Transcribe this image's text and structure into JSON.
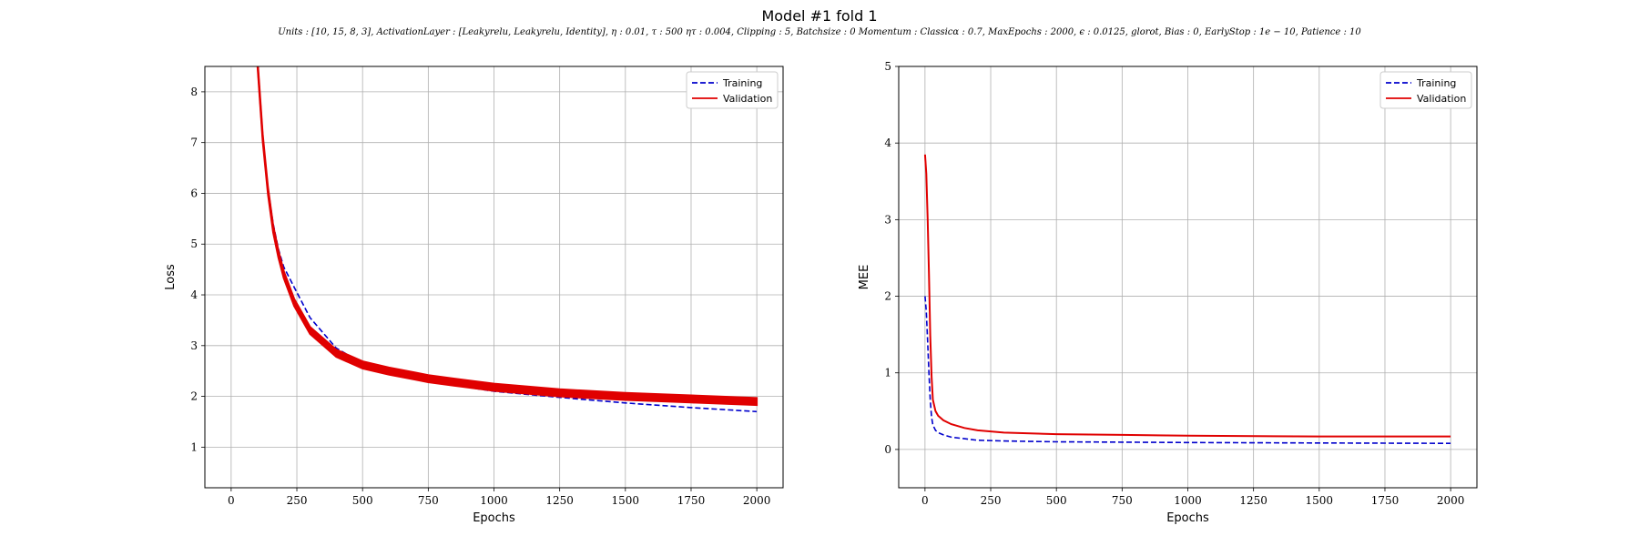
{
  "title": "Model #1 fold 1",
  "subtitle": "Units : [10, 15, 8, 3], ActivationLayer : [Leakyrelu, Leakyrelu, Identity], η : 0.01, τ : 500 ητ : 0.004, Clipping : 5, Batchsize : 0 Momentum : Classicα : 0.7, MaxEpochs : 2000, ϵ : 0.0125, glorot, Bias : 0, EarlyStop : 1e − 10, Patience : 10",
  "colors": {
    "training": "#0000cc",
    "validation": "#e00000",
    "grid": "#b0b0b0"
  },
  "chart_data": [
    {
      "type": "line",
      "xlabel": "Epochs",
      "ylabel": "Loss",
      "xlim": [
        -100,
        2100
      ],
      "ylim": [
        0.2,
        8.5
      ],
      "xticks": [
        0,
        250,
        500,
        750,
        1000,
        1250,
        1500,
        1750,
        2000
      ],
      "yticks": [
        1,
        2,
        3,
        4,
        5,
        6,
        7,
        8
      ],
      "grid": true,
      "legend": "top-right",
      "series": [
        {
          "name": "Training",
          "style": "dashed",
          "x": [
            100,
            120,
            140,
            160,
            180,
            200,
            240,
            300,
            400,
            500,
            600,
            700,
            750,
            850,
            1000,
            1250,
            1500,
            1750,
            2000
          ],
          "y": [
            8.6,
            7.1,
            6.1,
            5.4,
            4.9,
            4.55,
            4.15,
            3.55,
            2.95,
            2.65,
            2.5,
            2.38,
            2.33,
            2.22,
            2.1,
            1.98,
            1.87,
            1.78,
            1.7
          ]
        },
        {
          "name": "Validation",
          "style": "solid-band",
          "x": [
            100,
            120,
            140,
            160,
            180,
            200,
            240,
            300,
            400,
            500,
            600,
            700,
            750,
            850,
            1000,
            1250,
            1500,
            1750,
            2000
          ],
          "y": [
            8.6,
            7.1,
            6.05,
            5.3,
            4.8,
            4.4,
            3.85,
            3.3,
            2.85,
            2.62,
            2.5,
            2.4,
            2.35,
            2.28,
            2.18,
            2.07,
            2.0,
            1.95,
            1.9
          ],
          "band": 0.07
        }
      ]
    },
    {
      "type": "line",
      "xlabel": "Epochs",
      "ylabel": "MEE",
      "xlim": [
        -100,
        2100
      ],
      "ylim": [
        -0.5,
        5
      ],
      "xticks": [
        0,
        250,
        500,
        750,
        1000,
        1250,
        1500,
        1750,
        2000
      ],
      "yticks": [
        0,
        1,
        2,
        3,
        4,
        5
      ],
      "grid": true,
      "legend": "top-right",
      "series": [
        {
          "name": "Training",
          "style": "dashed",
          "x": [
            0,
            5,
            10,
            15,
            20,
            25,
            30,
            40,
            50,
            70,
            100,
            150,
            200,
            300,
            500,
            750,
            1000,
            1500,
            2000
          ],
          "y": [
            2.0,
            1.8,
            1.4,
            1.0,
            0.65,
            0.42,
            0.32,
            0.25,
            0.22,
            0.19,
            0.16,
            0.14,
            0.12,
            0.11,
            0.1,
            0.095,
            0.09,
            0.085,
            0.08
          ]
        },
        {
          "name": "Validation",
          "style": "solid",
          "x": [
            0,
            5,
            10,
            15,
            20,
            25,
            30,
            40,
            50,
            70,
            100,
            150,
            200,
            300,
            500,
            750,
            1000,
            1500,
            2000
          ],
          "y": [
            3.85,
            3.6,
            3.0,
            2.3,
            1.5,
            0.95,
            0.65,
            0.5,
            0.44,
            0.38,
            0.33,
            0.28,
            0.25,
            0.22,
            0.2,
            0.19,
            0.18,
            0.17,
            0.17
          ]
        }
      ]
    }
  ]
}
